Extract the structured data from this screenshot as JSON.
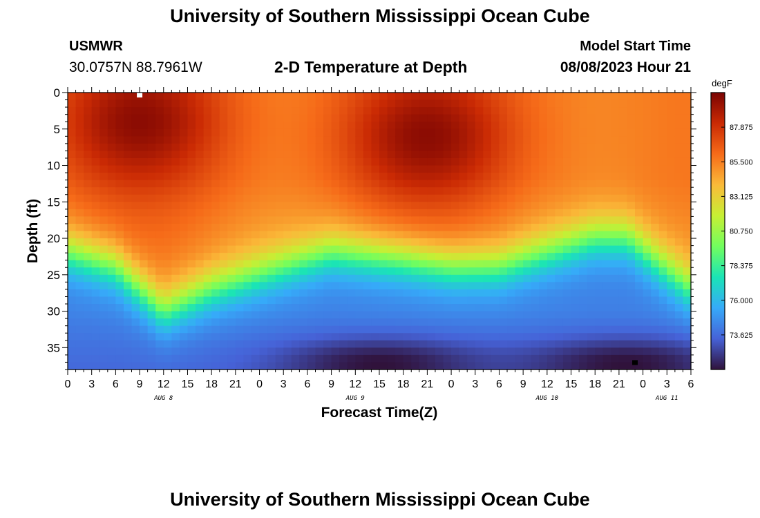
{
  "header": {
    "title": "University of Southern Mississippi Ocean Cube",
    "station_id": "USMWR",
    "coordinates": "30.0757N  88.7961W",
    "subtitle": "2-D Temperature at Depth",
    "model_label": "Model Start Time",
    "model_time": "08/08/2023 Hour 21"
  },
  "footer": {
    "title": "University of Southern Mississippi Ocean Cube"
  },
  "chart_data": {
    "type": "heatmap",
    "title": "2-D Temperature at Depth",
    "xlabel": "Forecast Time(Z)",
    "ylabel": "Depth (ft)",
    "x_range_hours": [
      0,
      78
    ],
    "x_tick_labels": [
      "0",
      "3",
      "6",
      "9",
      "12",
      "15",
      "18",
      "21",
      "0",
      "3",
      "6",
      "9",
      "12",
      "15",
      "18",
      "21",
      "0",
      "3",
      "6",
      "9",
      "12",
      "15",
      "18",
      "21",
      "0",
      "3",
      "6"
    ],
    "date_labels": [
      {
        "label": "AUG 8",
        "hour": 12
      },
      {
        "label": "AUG 9",
        "hour": 36
      },
      {
        "label": "AUG 10",
        "hour": 60
      },
      {
        "label": "AUG 11",
        "hour": 75
      }
    ],
    "y_range_ft": [
      0,
      38
    ],
    "y_ticks": [
      0,
      5,
      10,
      15,
      20,
      25,
      30,
      35
    ],
    "colorbar": {
      "unit": "degF",
      "min": 71.25,
      "max": 90.25,
      "tick_values": [
        "87.875",
        "85.500",
        "83.125",
        "80.750",
        "78.375",
        "76.000",
        "73.625"
      ],
      "colors": [
        "#30123b",
        "#4662d7",
        "#36aaf9",
        "#1ae4b6",
        "#72fe5e",
        "#c7ef34",
        "#faba39",
        "#f66b19",
        "#ca2a04",
        "#7a0403"
      ]
    },
    "description_of_field": "Warm mixed layer (~86-89 degF) above ~20 ft; thermocline oscillates with depth (~22-30 ft); cold bottom water (~71-74 degF) near 33-38 ft.",
    "thermocline_depth_ft_by_hour": [
      {
        "hour": 0,
        "depth": 22
      },
      {
        "hour": 6,
        "depth": 24
      },
      {
        "hour": 12,
        "depth": 30
      },
      {
        "hour": 18,
        "depth": 27
      },
      {
        "hour": 24,
        "depth": 25
      },
      {
        "hour": 33,
        "depth": 22
      },
      {
        "hour": 42,
        "depth": 23
      },
      {
        "hour": 48,
        "depth": 24
      },
      {
        "hour": 54,
        "depth": 24
      },
      {
        "hour": 60,
        "depth": 22
      },
      {
        "hour": 66,
        "depth": 20
      },
      {
        "hour": 70,
        "depth": 20
      },
      {
        "hour": 78,
        "depth": 27
      }
    ],
    "surface_maxima": [
      {
        "hour": 9,
        "depth": 4,
        "temp": 89.5
      },
      {
        "hour": 45,
        "depth": 6,
        "temp": 89.5
      }
    ],
    "bottom_minima": [
      {
        "hour": 39,
        "depth": 37,
        "temp": 71.5
      },
      {
        "hour": 70,
        "depth": 37,
        "temp": 71.3
      }
    ],
    "markers": [
      {
        "name": "white-marker",
        "hour": 9,
        "depth": 0.3,
        "color": "#ffffff"
      },
      {
        "name": "black-marker",
        "hour": 71,
        "depth": 37,
        "color": "#000000"
      }
    ]
  }
}
